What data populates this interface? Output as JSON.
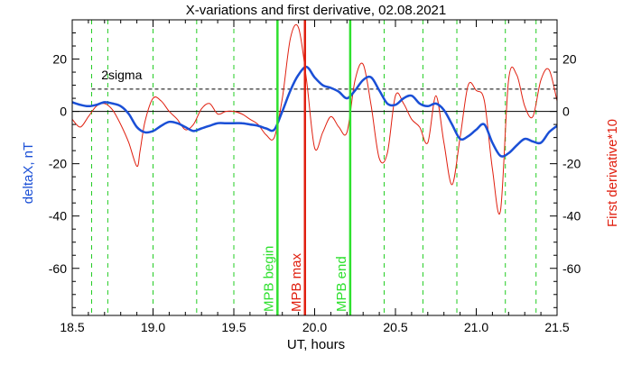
{
  "chart_data": {
    "type": "line",
    "title": "X-variations and first derivative, 02.08.2021",
    "xlabel": "UT, hours",
    "ylabel_left": "deltaX, nT",
    "ylabel_right": "First derivative*10",
    "xlim": [
      18.5,
      21.5
    ],
    "ylim": [
      -78,
      35
    ],
    "x_ticks": [
      18.5,
      19.0,
      19.5,
      20.0,
      20.5,
      21.0,
      21.5
    ],
    "x_tick_labels": [
      "18.5",
      "19.0",
      "19.5",
      "20.0",
      "20.5",
      "21.0",
      "21.5"
    ],
    "y_ticks": [
      20,
      0,
      -20,
      -40,
      -60
    ],
    "y_tick_labels": [
      "20",
      "0",
      "-20",
      "-40",
      "-60"
    ],
    "colors": {
      "deltaX": "#1a4fd6",
      "derivative": "#e02010",
      "mpb_green": "#2ee02e",
      "mpb_red": "#e02010",
      "guides": "#22cc22",
      "axis": "#000000"
    },
    "series": [
      {
        "name": "deltaX, nT",
        "color": "#1a4fd6",
        "x": [
          18.5,
          18.55,
          18.6,
          18.65,
          18.7,
          18.75,
          18.8,
          18.85,
          18.9,
          18.95,
          19.0,
          19.05,
          19.1,
          19.15,
          19.2,
          19.25,
          19.3,
          19.35,
          19.4,
          19.45,
          19.5,
          19.55,
          19.6,
          19.65,
          19.7,
          19.75,
          19.8,
          19.85,
          19.9,
          19.95,
          20.0,
          20.05,
          20.1,
          20.15,
          20.2,
          20.25,
          20.3,
          20.35,
          20.4,
          20.45,
          20.5,
          20.55,
          20.6,
          20.65,
          20.7,
          20.75,
          20.8,
          20.85,
          20.9,
          20.95,
          21.0,
          21.05,
          21.1,
          21.15,
          21.2,
          21.25,
          21.3,
          21.35,
          21.4,
          21.45,
          21.5
        ],
        "y": [
          3.5,
          2.5,
          2.0,
          2.5,
          3.5,
          3.0,
          2.0,
          -1.0,
          -6.0,
          -8.0,
          -7.5,
          -5.5,
          -4.0,
          -4.5,
          -6.0,
          -7.5,
          -6.5,
          -5.5,
          -4.5,
          -4.5,
          -4.5,
          -4.5,
          -5.0,
          -5.5,
          -6.5,
          -7.0,
          0.0,
          8.0,
          14.0,
          17.0,
          13.0,
          10.0,
          9.0,
          7.5,
          5.0,
          8.0,
          12.0,
          13.0,
          8.0,
          3.0,
          2.5,
          5.0,
          6.0,
          3.0,
          2.0,
          3.0,
          0.5,
          -5.0,
          -10.5,
          -9.5,
          -7.0,
          -5.0,
          -12.0,
          -17.0,
          -16.0,
          -13.0,
          -10.5,
          -11.5,
          -12.0,
          -8.0,
          -5.5
        ]
      },
      {
        "name": "First derivative*10",
        "color": "#e02010",
        "x": [
          18.5,
          18.55,
          18.6,
          18.65,
          18.7,
          18.75,
          18.8,
          18.85,
          18.9,
          18.92,
          18.95,
          19.0,
          19.05,
          19.1,
          19.15,
          19.2,
          19.25,
          19.3,
          19.35,
          19.4,
          19.45,
          19.5,
          19.55,
          19.6,
          19.65,
          19.7,
          19.75,
          19.8,
          19.85,
          19.9,
          19.95,
          20.0,
          20.05,
          20.1,
          20.15,
          20.2,
          20.25,
          20.3,
          20.35,
          20.4,
          20.45,
          20.5,
          20.55,
          20.6,
          20.65,
          20.7,
          20.75,
          20.8,
          20.85,
          20.9,
          20.95,
          21.0,
          21.05,
          21.1,
          21.15,
          21.2,
          21.25,
          21.3,
          21.35,
          21.4,
          21.45,
          21.5
        ],
        "y": [
          -3.0,
          -6.0,
          -2.0,
          2.0,
          3.0,
          0.5,
          -5.0,
          -12.0,
          -21.0,
          -15.0,
          -4.0,
          5.0,
          4.0,
          0.0,
          -3.0,
          -7.0,
          -5.0,
          1.0,
          3.0,
          -1.0,
          0.0,
          0.0,
          -1.0,
          -3.0,
          -5.0,
          -9.0,
          -10.0,
          5.0,
          28.0,
          32.0,
          12.0,
          -14.0,
          -8.0,
          -2.0,
          -6.0,
          -8.0,
          12.0,
          18.0,
          2.0,
          -18.0,
          -16.0,
          6.0,
          3.0,
          -3.0,
          -6.0,
          -12.0,
          6.0,
          -12.0,
          -28.0,
          -10.0,
          10.0,
          8.0,
          4.0,
          -22.0,
          -38.0,
          12.0,
          14.0,
          2.0,
          -2.0,
          12.0,
          16.0,
          4.0
        ]
      }
    ],
    "threshold": {
      "label": "2sigma",
      "y": 8.5
    },
    "zero_line": 0,
    "guide_lines_x": [
      18.62,
      18.72,
      19.0,
      19.27,
      19.5,
      20.43,
      20.67,
      20.88,
      21.18,
      21.37
    ],
    "markers": [
      {
        "label": "MPB begin",
        "x": 19.77,
        "color": "#2ee02e"
      },
      {
        "label": "MPB max",
        "x": 19.94,
        "color": "#e02010"
      },
      {
        "label": "MPB end",
        "x": 20.22,
        "color": "#2ee02e"
      }
    ]
  }
}
